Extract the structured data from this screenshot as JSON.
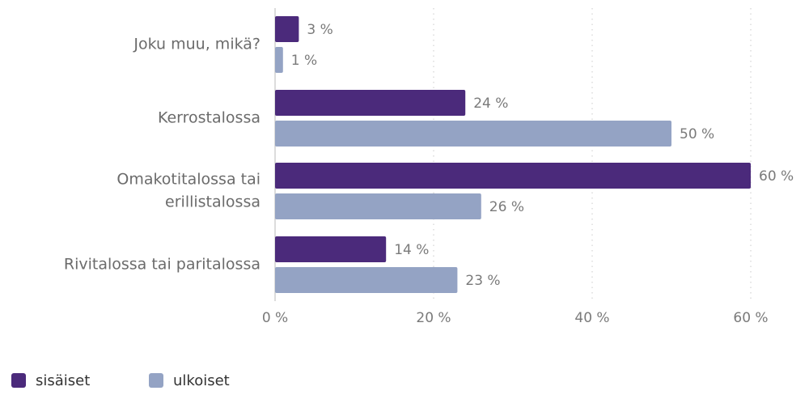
{
  "chart_data": {
    "type": "bar",
    "orientation": "horizontal",
    "categories": [
      [
        "Joku muu, mikä?"
      ],
      [
        "Kerrostalossa"
      ],
      [
        "Omakotitalossa tai",
        "erillistalossa"
      ],
      [
        "Rivitalossa tai paritalossa"
      ]
    ],
    "series": [
      {
        "name": "sisäiset",
        "color": "#4b2a7b",
        "values": [
          3,
          24,
          60,
          14
        ]
      },
      {
        "name": "ulkoiset",
        "color": "#94a3c4",
        "values": [
          1,
          50,
          26,
          23
        ]
      }
    ],
    "value_suffix": " %",
    "xlim": [
      0,
      60
    ],
    "xticks": [
      0,
      20,
      40,
      60
    ],
    "xtick_labels": [
      "0 %",
      "20 %",
      "40 %",
      "60 %"
    ],
    "grid": "vertical-dotted",
    "legend_position": "bottom-left",
    "title": "",
    "xlabel": "",
    "ylabel": ""
  }
}
